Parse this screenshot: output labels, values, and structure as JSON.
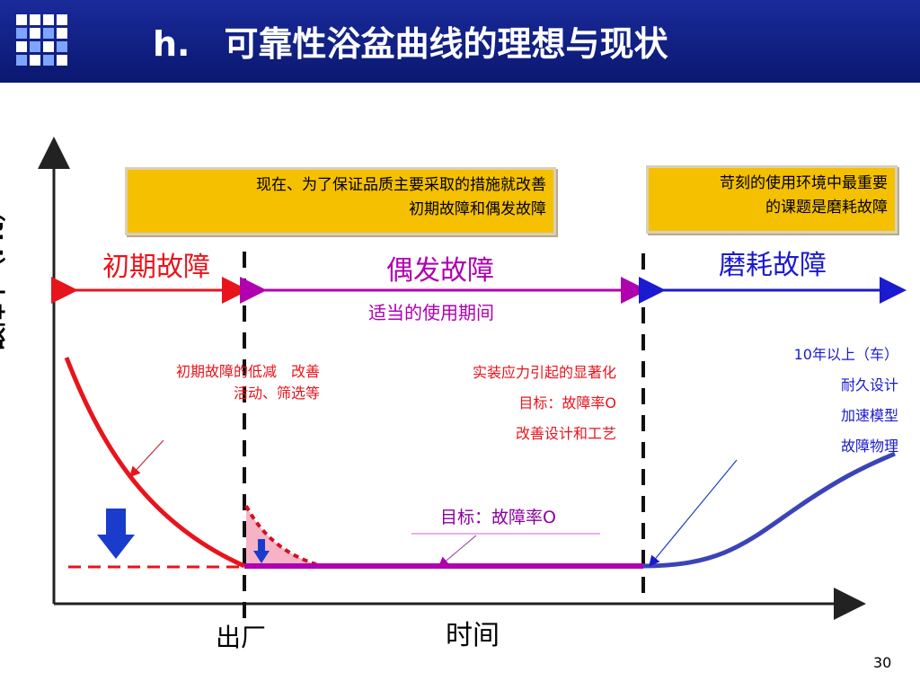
{
  "header": {
    "title": "h.　可靠性浴盆曲线的理想与现状"
  },
  "boxes": {
    "left": {
      "line1": "现在、为了保证品质主要采取的措施就改善",
      "line2": "初期故障和偶发故障"
    },
    "right": {
      "line1": "苛刻的使用环境中最重要",
      "line2": "的课题是磨耗故障"
    }
  },
  "phases": {
    "early": "初期故障",
    "random": "偶发故障",
    "wearout": "磨耗故障",
    "useful_life": "适当的使用期间"
  },
  "notes": {
    "early_line1": "初期故障的低减　改善",
    "early_line2": "活动、筛选等",
    "random_line1": "实装应力引起的显著化",
    "random_line2": "目标：故障率O",
    "random_line3": "改善设计和工艺",
    "target": "目标：故障率O",
    "wear_line1": "10年以上（车）",
    "wear_line2": "耐久设计",
    "wear_line3": "加速模型",
    "wear_line4": "故障物理"
  },
  "axes": {
    "ylabel": "故障率（Fit）",
    "x_ship": "出厂",
    "x_time": "时间"
  },
  "page_number": "30",
  "colors": {
    "header_bg": "#1a2a9a",
    "box_fill": "#f5c000",
    "early": "#e8141c",
    "random": "#b000b0",
    "wearout": "#1a1ad0",
    "curve_wear": "#3a44b8",
    "annotation_red": "#e8141c"
  }
}
